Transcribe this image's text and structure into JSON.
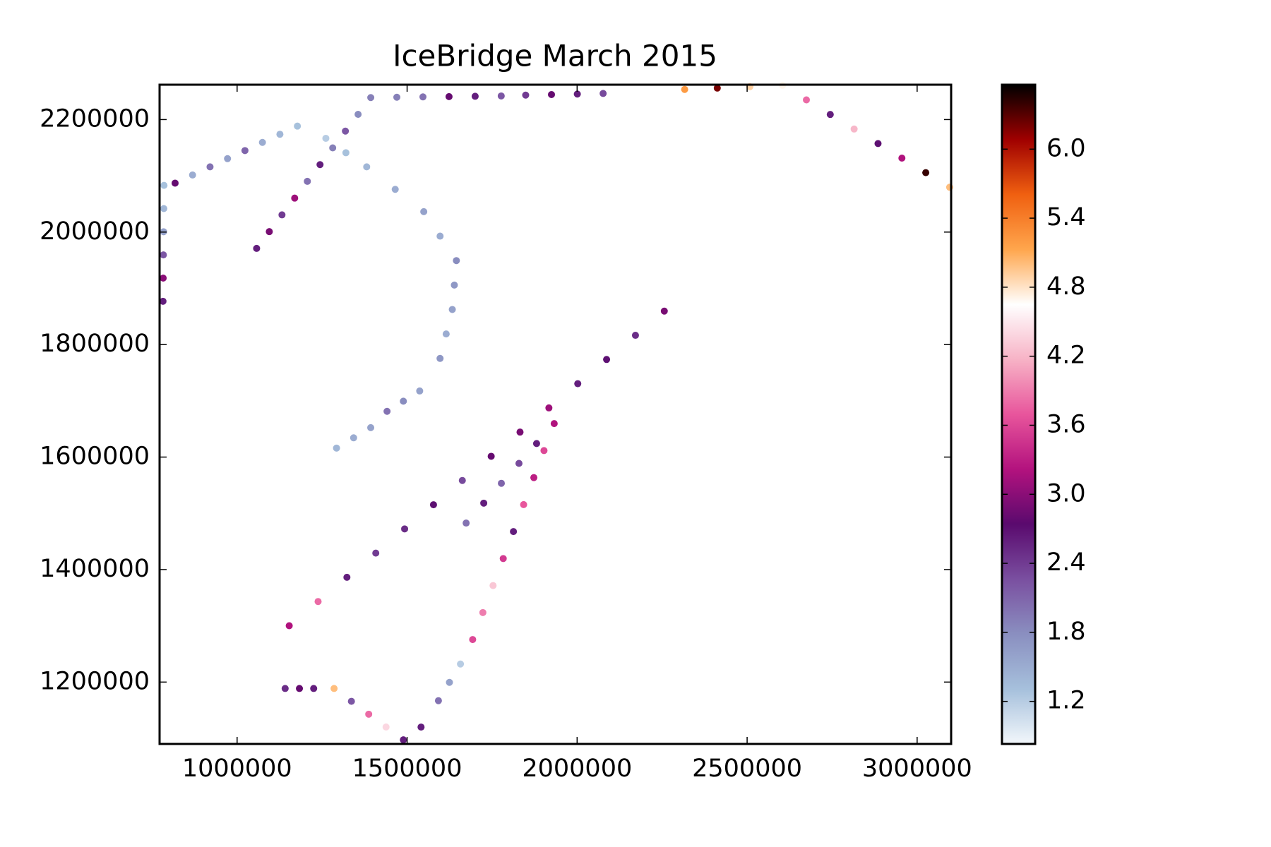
{
  "chart_data": {
    "type": "scatter",
    "title": "IceBridge March 2015",
    "x": [
      782000,
      782600,
      783200,
      783800,
      784400,
      785000,
      817600,
      869000,
      920400,
      971800,
      1023100,
      1074500,
      1125900,
      1177300,
      1261000,
      1320000,
      1381100,
      1465000,
      1549000,
      1597000,
      1644900,
      1638900,
      1632900,
      1614900,
      1596900,
      1537000,
      1489000,
      1441000,
      1393000,
      1342700,
      1292400,
      1057400,
      1094700,
      1132000,
      1169300,
      1206600,
      1243900,
      1281200,
      1318500,
      1355800,
      1393100,
      1469800,
      1546600,
      1623300,
      1700100,
      1776800,
      1848700,
      1924600,
      2000600,
      2076500,
      2316300,
      2412200,
      2508100,
      2604100,
      2674300,
      2744500,
      2814700,
      2885000,
      2955200,
      3025400,
      3095600,
      1153300,
      1238200,
      1323000,
      1407900,
      1492700,
      1577600,
      1662400,
      1747300,
      1832100,
      1917000,
      2001900,
      2086700,
      2171600,
      2256400,
      1673600,
      1725400,
      1777200,
      1829000,
      1880800,
      1932600,
      1902600,
      1872700,
      1842700,
      1812700,
      1782700,
      1752800,
      1722800,
      1692800,
      1656900,
      1624500,
      1592100,
      1541000,
      1141300,
      1183300,
      1225200,
      1285200,
      1336200,
      1387100,
      1438100,
      1489000
    ],
    "y": [
      1877000,
      1918200,
      1959400,
      2000600,
      2041800,
      2083000,
      2087000,
      2101500,
      2116000,
      2130500,
      2144900,
      2159400,
      2173900,
      2188400,
      2166700,
      2141000,
      2116000,
      2076000,
      2036300,
      1992800,
      1949300,
      1905800,
      1862400,
      1818900,
      1775400,
      1717500,
      1699400,
      1681300,
      1652300,
      1634200,
      1616000,
      1971000,
      2000800,
      2030600,
      2060400,
      2090200,
      2119900,
      2149700,
      2179500,
      2209300,
      2239100,
      2239700,
      2240300,
      2240800,
      2241400,
      2242000,
      2243500,
      2244500,
      2245400,
      2246400,
      2253600,
      2256000,
      2258500,
      2260900,
      2235000,
      2209100,
      2183200,
      2157400,
      2131500,
      2105600,
      2079700,
      1300200,
      1343200,
      1386300,
      1429300,
      1472300,
      1515300,
      1558400,
      1601400,
      1644400,
      1687400,
      1730500,
      1773500,
      1816500,
      1859500,
      1482700,
      1518100,
      1553400,
      1588800,
      1624100,
      1659500,
      1611500,
      1563500,
      1515500,
      1467600,
      1419600,
      1371600,
      1323600,
      1275600,
      1232100,
      1199500,
      1166900,
      1120000,
      1188600,
      1188600,
      1188600,
      1188600,
      1165800,
      1142900,
      1120100,
      1097300
    ],
    "values": [
      2.6,
      3.0,
      2.2,
      1.6,
      1.4,
      1.3,
      2.8,
      1.5,
      2.0,
      1.6,
      2.1,
      1.5,
      1.4,
      1.3,
      1.2,
      1.3,
      1.4,
      1.5,
      1.6,
      1.5,
      1.8,
      1.7,
      1.6,
      1.5,
      1.7,
      1.6,
      1.8,
      2.0,
      1.6,
      1.5,
      1.4,
      2.6,
      2.9,
      2.4,
      3.1,
      2.0,
      2.6,
      1.9,
      2.2,
      1.8,
      1.9,
      1.9,
      2.0,
      2.8,
      2.6,
      2.2,
      2.4,
      2.8,
      2.6,
      2.3,
      5.2,
      6.2,
      4.9,
      4.7,
      3.8,
      2.6,
      4.2,
      2.7,
      3.2,
      6.4,
      5.0,
      3.2,
      3.8,
      2.6,
      2.4,
      2.5,
      2.7,
      2.3,
      2.8,
      2.9,
      3.1,
      2.6,
      2.7,
      2.5,
      2.9,
      2.0,
      2.6,
      2.1,
      2.3,
      2.6,
      3.2,
      3.6,
      3.3,
      3.7,
      2.6,
      3.5,
      4.3,
      3.9,
      3.6,
      1.2,
      1.6,
      2.0,
      2.6,
      2.5,
      2.8,
      2.6,
      5.0,
      2.2,
      3.8,
      4.4,
      2.6
    ],
    "xlim": [
      772000,
      3100000
    ],
    "ylim": [
      1090000,
      2262000
    ],
    "xticks": [
      1000000,
      1500000,
      2000000,
      2500000,
      3000000
    ],
    "yticks": [
      1200000,
      1400000,
      1600000,
      1800000,
      2000000,
      2200000
    ],
    "clim": [
      0.83,
      6.56
    ],
    "cticks": [
      1.2,
      1.8,
      2.4,
      {
        "value": 3,
        "label": "3.0"
      },
      3.6,
      4.2,
      4.8,
      5.4,
      {
        "value": 6,
        "label": "6.0"
      }
    ],
    "colormap": [
      "#f2f7fb",
      "#a6c0dc",
      "#8a8fc0",
      "#7a4fa0",
      "#5a0a6e",
      "#b3127e",
      "#e8559c",
      "#f7b3c6",
      "#ffffff",
      "#ffa64d",
      "#f06010",
      "#a00000",
      "#000000"
    ]
  }
}
